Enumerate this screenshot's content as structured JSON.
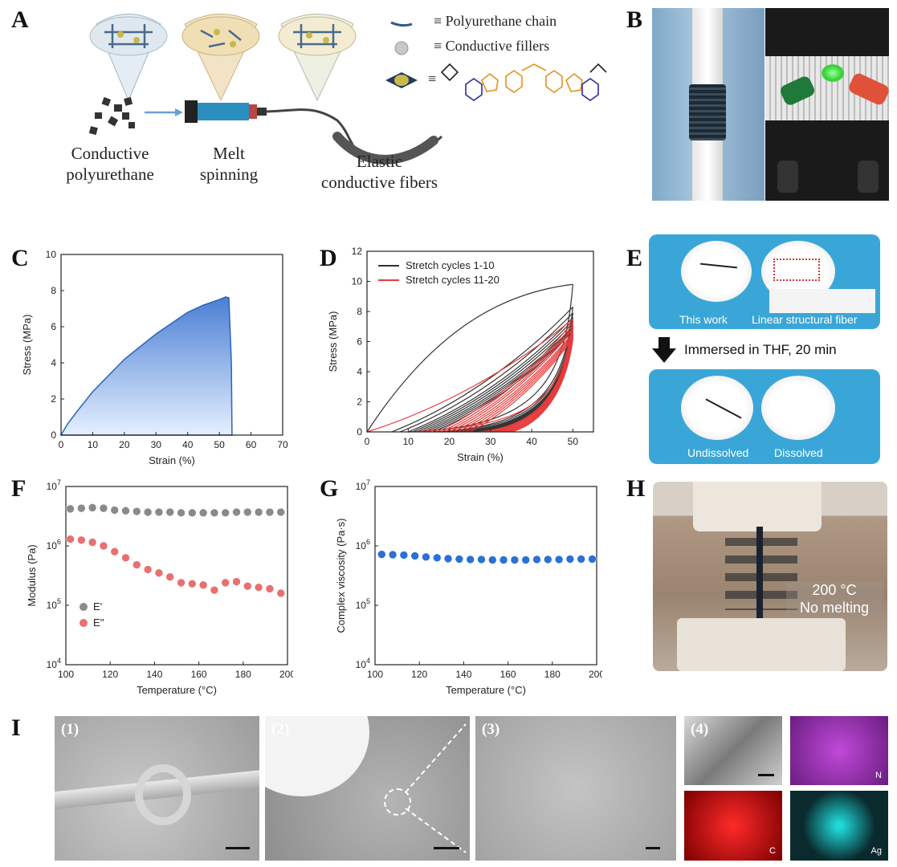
{
  "panels": {
    "A": "A",
    "B": "B",
    "C": "C",
    "D": "D",
    "E": "E",
    "F": "F",
    "G": "G",
    "H": "H",
    "I": "I"
  },
  "panelA": {
    "legend_chain": "≡ Polyurethane chain",
    "legend_fillers": "≡ Conductive fillers",
    "legend_molecule": "≡",
    "label_cpu_1": "Conductive",
    "label_cpu_2": "polyurethane",
    "label_melt_1": "Melt",
    "label_melt_2": "spinning",
    "label_fiber_1": "Elastic",
    "label_fiber_2": "conductive fibers"
  },
  "panelE": {
    "label_this_work": "This work",
    "label_linear": "Linear structural fiber",
    "arrow_text": "Immersed in THF, 20 min",
    "label_undissolved": "Undissolved",
    "label_dissolved": "Dissolved"
  },
  "panelH": {
    "line1": "200 °C",
    "line2": "No melting"
  },
  "panelI": {
    "sub1": "(1)",
    "sub2": "(2)",
    "sub3": "(3)",
    "sub4": "(4)",
    "map_N": "N",
    "map_C": "C",
    "map_Ag": "Ag"
  },
  "colors": {
    "blue_fill": "#4a7fd4",
    "red": "#e83b3b",
    "grey_dot": "#8a8a8a",
    "pink_dot": "#e87070",
    "blue_dot": "#2d6fd8",
    "panel_bg": "#3aa6d8"
  },
  "chart_data": [
    {
      "id": "C",
      "type": "area",
      "xlabel": "Strain (%)",
      "ylabel": "Stress (MPa)",
      "xlim": [
        0,
        70
      ],
      "ylim": [
        0,
        10
      ],
      "xticks": [
        0,
        10,
        20,
        30,
        40,
        50,
        60,
        70
      ],
      "yticks": [
        0,
        2,
        4,
        6,
        8,
        10
      ],
      "x": [
        0,
        2,
        5,
        10,
        15,
        20,
        25,
        30,
        35,
        40,
        45,
        50,
        52,
        53,
        53.8,
        54
      ],
      "y": [
        0,
        0.6,
        1.3,
        2.4,
        3.3,
        4.2,
        4.9,
        5.6,
        6.2,
        6.8,
        7.2,
        7.5,
        7.65,
        7.6,
        4,
        0
      ]
    },
    {
      "id": "D",
      "type": "line",
      "xlabel": "Strain (%)",
      "ylabel": "Stress (MPa)",
      "xlim": [
        0,
        55
      ],
      "ylim": [
        0,
        12
      ],
      "xticks": [
        0,
        10,
        20,
        30,
        40,
        50
      ],
      "yticks": [
        0,
        2,
        4,
        6,
        8,
        10,
        12
      ],
      "legend": [
        "Stretch cycles   1-10",
        "Stretch cycles 11-20"
      ],
      "series": [
        {
          "name": "Stretch cycles   1-10",
          "color": "#333333",
          "peaks": [
            9.8,
            8.3,
            7.9,
            7.6,
            7.4,
            7.2,
            7.0,
            6.9,
            6.8,
            6.7
          ],
          "starts": [
            0,
            6,
            8,
            10,
            11,
            12,
            13,
            14,
            15,
            16
          ]
        },
        {
          "name": "Stretch cycles 11-20",
          "color": "#e83b3b",
          "peaks": [
            7.5,
            7.3,
            7.1,
            6.9,
            6.8,
            6.6,
            6.5,
            6.4,
            6.3,
            6.2
          ],
          "starts": [
            0,
            17,
            18,
            19,
            20,
            21,
            22,
            23,
            24,
            25
          ]
        }
      ]
    },
    {
      "id": "F",
      "type": "scatter",
      "xlabel": "Temperature (°C)",
      "ylabel": "Modulus (Pa)",
      "xlim": [
        100,
        200
      ],
      "ylog": [
        4,
        7
      ],
      "xticks": [
        100,
        120,
        140,
        160,
        180,
        200
      ],
      "yticks": [
        "10^4",
        "10^5",
        "10^6",
        "10^7"
      ],
      "legend": [
        "E'",
        "E''"
      ],
      "x": [
        102,
        107,
        112,
        117,
        122,
        127,
        132,
        137,
        142,
        147,
        152,
        157,
        162,
        167,
        172,
        177,
        182,
        187,
        192,
        197
      ],
      "series": [
        {
          "name": "E'",
          "values": [
            4200000.0,
            4300000.0,
            4400000.0,
            4300000.0,
            4000000.0,
            3900000.0,
            3800000.0,
            3700000.0,
            3700000.0,
            3700000.0,
            3600000.0,
            3600000.0,
            3600000.0,
            3600000.0,
            3600000.0,
            3700000.0,
            3700000.0,
            3700000.0,
            3700000.0,
            3700000.0
          ]
        },
        {
          "name": "E''",
          "values": [
            1300000.0,
            1250000.0,
            1150000.0,
            1000000.0,
            800000.0,
            630000.0,
            480000.0,
            400000.0,
            350000.0,
            300000.0,
            240000.0,
            230000.0,
            220000.0,
            180000.0,
            240000.0,
            250000.0,
            210000.0,
            200000.0,
            190000.0,
            160000.0
          ]
        }
      ]
    },
    {
      "id": "G",
      "type": "scatter",
      "xlabel": "Temperature (°C)",
      "ylabel": "Complex viscosity (Pa·s)",
      "xlim": [
        100,
        200
      ],
      "ylog": [
        4,
        7
      ],
      "xticks": [
        100,
        120,
        140,
        160,
        180,
        200
      ],
      "yticks": [
        "10^4",
        "10^5",
        "10^6",
        "10^7"
      ],
      "x": [
        103,
        108,
        113,
        118,
        123,
        128,
        133,
        138,
        143,
        148,
        153,
        158,
        163,
        168,
        173,
        178,
        183,
        188,
        193,
        198
      ],
      "values": [
        720000.0,
        710000.0,
        700000.0,
        680000.0,
        650000.0,
        630000.0,
        610000.0,
        600000.0,
        590000.0,
        590000.0,
        580000.0,
        580000.0,
        580000.0,
        580000.0,
        590000.0,
        590000.0,
        590000.0,
        600000.0,
        600000.0,
        600000.0
      ]
    }
  ]
}
